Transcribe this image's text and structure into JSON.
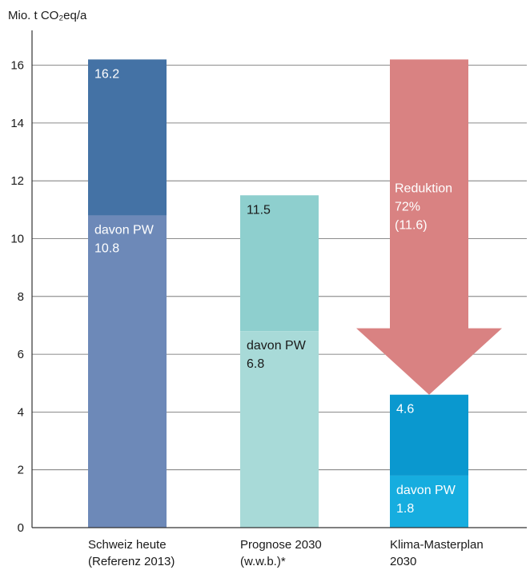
{
  "chart_data": {
    "type": "bar",
    "ylabel": "Mio. t CO₂eq/a",
    "ylim": [
      0,
      17
    ],
    "yticks": [
      0,
      2,
      4,
      6,
      8,
      10,
      12,
      14,
      16
    ],
    "grid": true,
    "categories": [
      [
        "Schweiz heute",
        "(Referenz 2013)"
      ],
      [
        "Prognose 2030",
        "(w.w.b.)*"
      ],
      [
        "Klima-Masterplan",
        "2030"
      ]
    ],
    "bars": [
      {
        "total": 16.2,
        "part": 10.8,
        "total_label": "16.2",
        "part_label": [
          "davon PW",
          "10.8"
        ],
        "color_total": "#4472a5",
        "color_part": "#6d89b8",
        "text_color": "#ffffff"
      },
      {
        "total": 11.5,
        "part": 6.8,
        "total_label": "11.5",
        "part_label": [
          "davon PW",
          "6.8"
        ],
        "color_total": "#8ecfce",
        "color_part": "#a8dad8",
        "text_color": "#1a1a1a"
      },
      {
        "total": 4.6,
        "part": 1.8,
        "total_label": "4.6",
        "part_label": [
          "davon PW",
          "1.8"
        ],
        "color_total": "#0a98cf",
        "color_part": "#16addf",
        "text_color": "#ffffff"
      }
    ],
    "reduction_arrow": {
      "from": 16.2,
      "to": 4.6,
      "label": [
        "Reduktion",
        "72%",
        "(11.6)"
      ],
      "color": "#d98282",
      "text_color": "#ffffff"
    },
    "axis_color": "#333333",
    "grid_color": "#666666"
  }
}
